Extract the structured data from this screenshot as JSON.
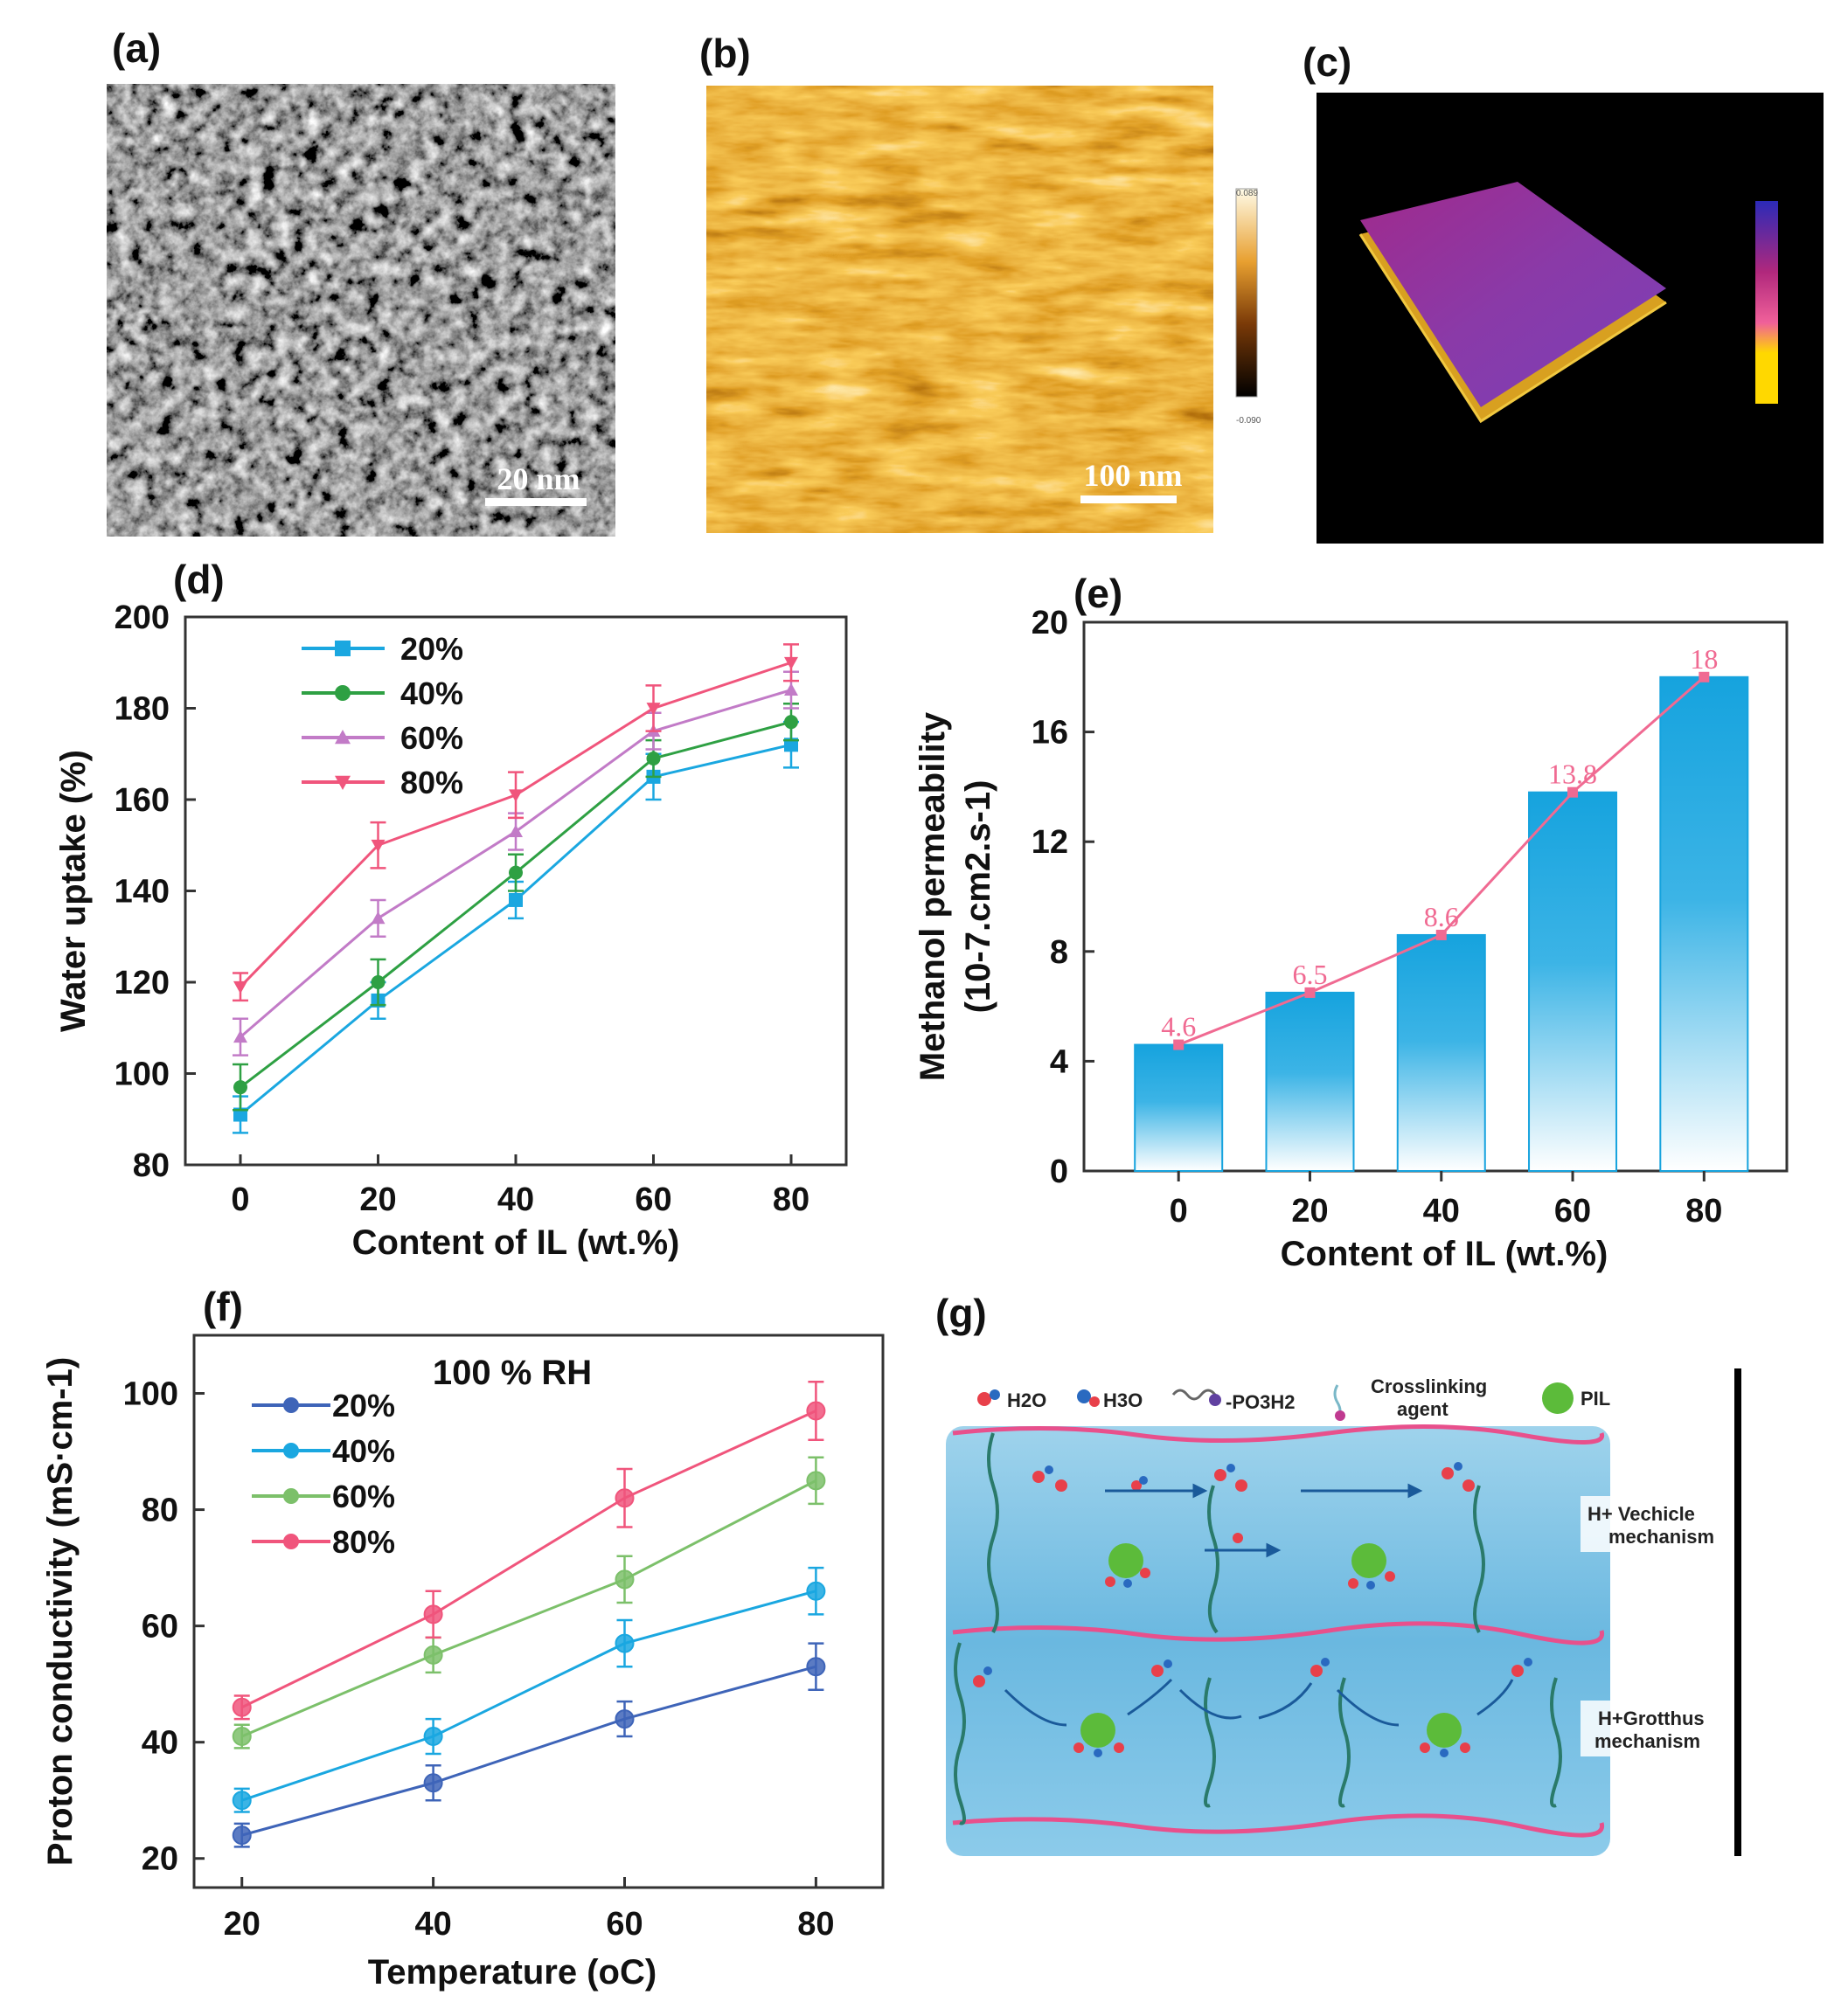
{
  "panels": {
    "a": {
      "label": "(a)",
      "scale_bar": "20 nm"
    },
    "b": {
      "label": "(b)",
      "scale_bar": "100 nm",
      "colorbar_top": "0.089",
      "colorbar_bottom": "-0.090"
    },
    "c": {
      "label": "(c)"
    },
    "d": {
      "label": "(d)"
    },
    "e": {
      "label": "(e)"
    },
    "f": {
      "label": "(f)"
    },
    "g": {
      "label": "(g)"
    }
  },
  "chart_data": [
    {
      "id": "d",
      "type": "line",
      "xlabel": "Content of IL (wt.%)",
      "ylabel": "Water uptake (%)",
      "x": [
        0,
        20,
        40,
        60,
        80
      ],
      "xlim": [
        -8,
        88
      ],
      "ylim": [
        80,
        200
      ],
      "yticks": [
        80,
        100,
        120,
        140,
        160,
        180,
        200
      ],
      "xticks": [
        0,
        20,
        40,
        60,
        80
      ],
      "legend_position": "top-left",
      "series": [
        {
          "name": "20%",
          "marker": "square",
          "color": "#1aa7e0",
          "values": [
            91,
            116,
            138,
            165,
            172
          ],
          "errors": [
            4,
            4,
            4,
            5,
            5
          ]
        },
        {
          "name": "40%",
          "marker": "circle",
          "color": "#2ea043",
          "values": [
            97,
            120,
            144,
            169,
            177
          ],
          "errors": [
            5,
            5,
            4,
            4,
            4
          ]
        },
        {
          "name": "60%",
          "marker": "triangle-up",
          "color": "#c27bc7",
          "values": [
            108,
            134,
            153,
            175,
            184
          ],
          "errors": [
            4,
            4,
            4,
            4,
            4
          ]
        },
        {
          "name": "80%",
          "marker": "triangle-down",
          "color": "#f0557c",
          "values": [
            119,
            150,
            161,
            180,
            190
          ],
          "errors": [
            3,
            5,
            5,
            5,
            4
          ]
        }
      ]
    },
    {
      "id": "e",
      "type": "bar",
      "xlabel": "Content of IL (wt.%)",
      "ylabel_line1": "Methanol permeability",
      "ylabel_line2": "(10-7.cm2.s-1)",
      "categories": [
        "0",
        "20",
        "40",
        "60",
        "80"
      ],
      "values": [
        4.6,
        6.5,
        8.6,
        13.8,
        18
      ],
      "data_labels": [
        "4.6",
        "6.5",
        "8.6",
        "13.8",
        "18"
      ],
      "ylim": [
        0,
        20
      ],
      "yticks": [
        0,
        4,
        8,
        12,
        16,
        20
      ],
      "bar_color": "#1aa7e0",
      "line_color": "#f06a92"
    },
    {
      "id": "f",
      "type": "line",
      "title": "100 % RH",
      "xlabel": "Temperature (oC)",
      "ylabel": "Proton conductivity (mS·cm-1)",
      "x": [
        20,
        40,
        60,
        80
      ],
      "xlim": [
        15,
        87
      ],
      "ylim": [
        15,
        110
      ],
      "yticks": [
        20,
        40,
        60,
        80,
        100
      ],
      "xticks": [
        20,
        40,
        60,
        80
      ],
      "legend_position": "top-left",
      "series": [
        {
          "name": "20%",
          "color": "#3e64b8",
          "values": [
            24,
            33,
            44,
            53
          ],
          "errors": [
            2,
            3,
            3,
            4
          ]
        },
        {
          "name": "40%",
          "color": "#1aa7e0",
          "values": [
            30,
            41,
            57,
            66
          ],
          "errors": [
            2,
            3,
            4,
            4
          ]
        },
        {
          "name": "60%",
          "color": "#7cc06a",
          "values": [
            41,
            55,
            68,
            85
          ],
          "errors": [
            2,
            3,
            4,
            4
          ]
        },
        {
          "name": "80%",
          "color": "#f0557c",
          "values": [
            46,
            62,
            82,
            97
          ],
          "errors": [
            2,
            4,
            5,
            5
          ]
        }
      ]
    }
  ],
  "scheme": {
    "legend_h2o": "H2O",
    "legend_h3o": "H3O",
    "legend_po3h2": "-PO3H2",
    "legend_crosslink_1": "Crosslinking",
    "legend_crosslink_2": "agent",
    "legend_pil": "PIL",
    "vehicle_1": "H+ Vechicle",
    "vehicle_2": "mechanism",
    "grotthus_1": "H+Grotthus",
    "grotthus_2": "mechanism"
  }
}
